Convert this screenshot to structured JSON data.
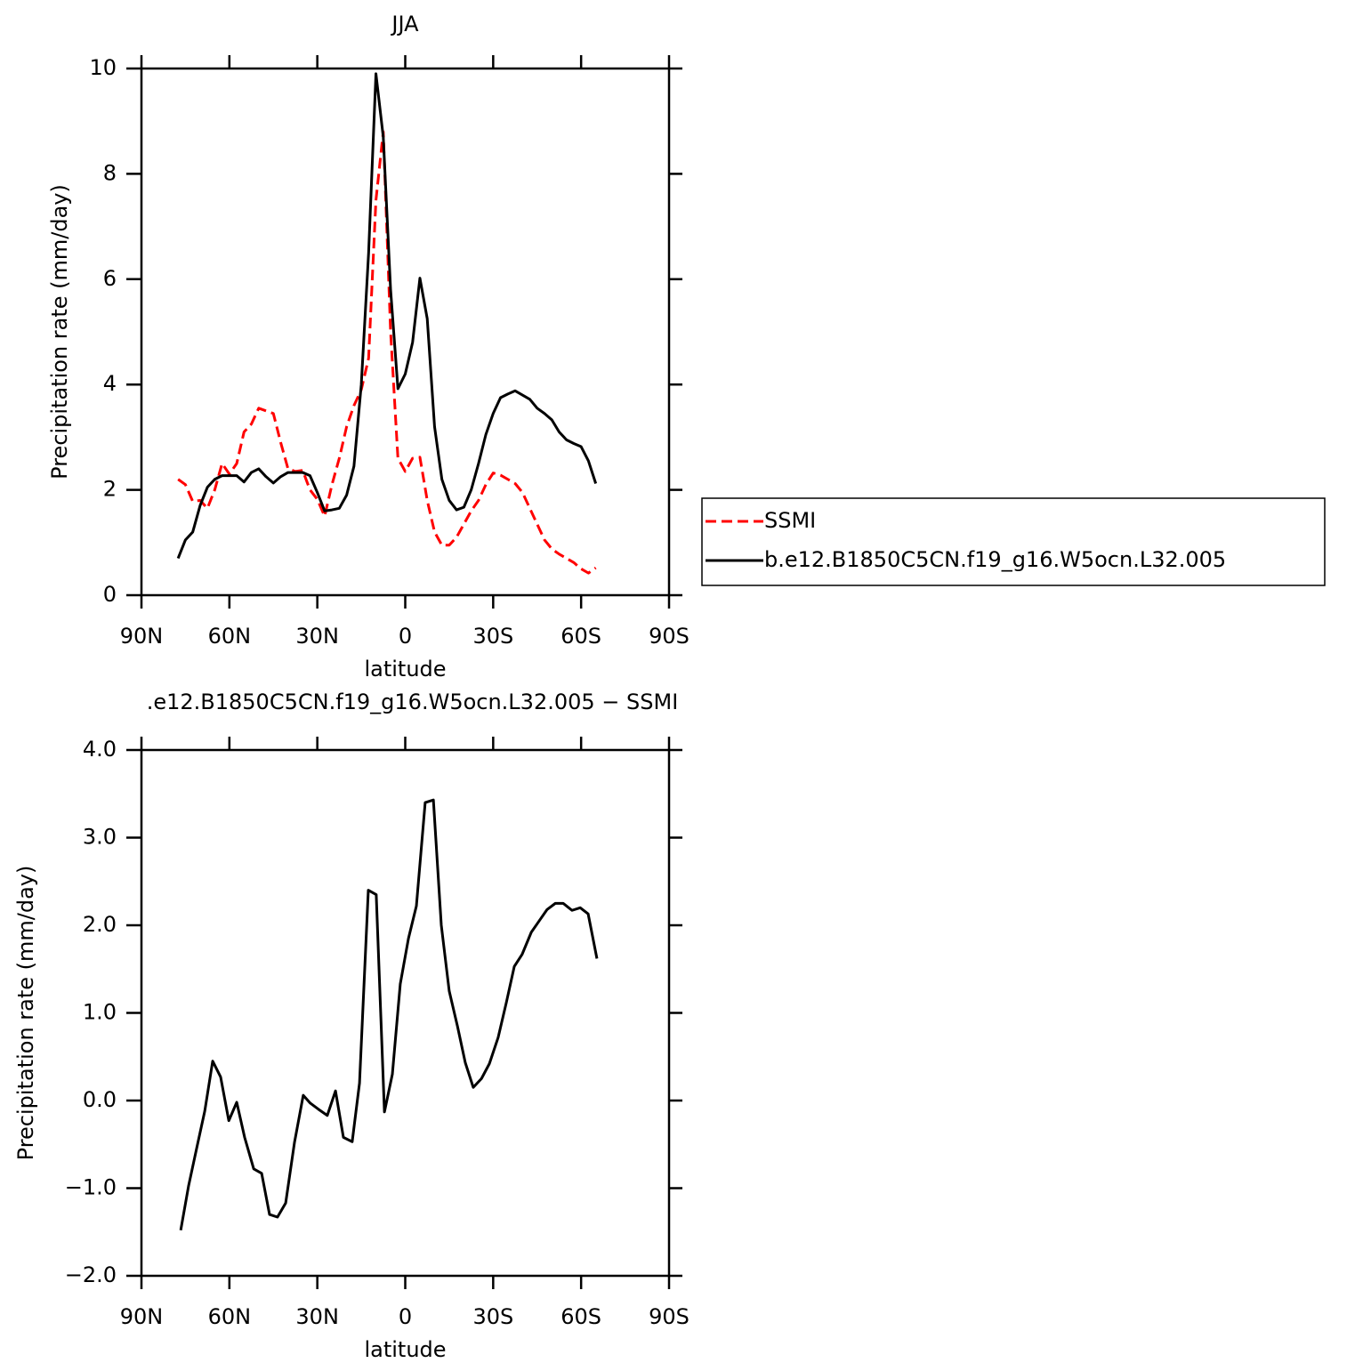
{
  "chart_data": [
    {
      "type": "line",
      "title": "JJA",
      "ylabel": "Precipitation rate (mm/day)",
      "xlabel": "latitude",
      "x": [
        77.5,
        75,
        72.5,
        70,
        67.5,
        65,
        62.5,
        60,
        57.5,
        55,
        52.5,
        50,
        47.5,
        45,
        42.5,
        40,
        37.5,
        35,
        32.5,
        30,
        27.5,
        25,
        22.5,
        20,
        17.5,
        15,
        12.5,
        10,
        7.5,
        5,
        2.5,
        0,
        -2.5,
        -5,
        -7.5,
        -10,
        -12.5,
        -15,
        -17.5,
        -20,
        -22.5,
        -25,
        -27.5,
        -30,
        -32.5,
        -35,
        -37.5,
        -40,
        -42.5,
        -45,
        -47.5,
        -50,
        -52.5,
        -55,
        -57.5,
        -60,
        -62.5,
        -65
      ],
      "series": [
        {
          "name": "SSMI",
          "color": "#ff0000",
          "line_style": "dashed",
          "values": [
            2.2,
            2.1,
            1.78,
            1.8,
            1.65,
            2.0,
            2.5,
            2.3,
            2.5,
            3.1,
            3.25,
            3.55,
            3.5,
            3.45,
            2.9,
            2.4,
            2.35,
            2.37,
            2.0,
            1.82,
            1.5,
            2.1,
            2.6,
            3.2,
            3.6,
            3.9,
            4.5,
            7.5,
            8.8,
            5.0,
            2.6,
            2.35,
            2.6,
            2.62,
            1.8,
            1.2,
            0.95,
            0.95,
            1.1,
            1.35,
            1.6,
            1.8,
            2.1,
            2.32,
            2.28,
            2.2,
            2.12,
            1.95,
            1.65,
            1.35,
            1.05,
            0.88,
            0.78,
            0.7,
            0.62,
            0.5,
            0.42,
            0.52
          ]
        },
        {
          "name": "b.e12.B1850C5CN.f19_g16.W5ocn.L32.005",
          "color": "#000000",
          "line_style": "solid",
          "values": [
            0.7,
            1.05,
            1.2,
            1.7,
            2.05,
            2.2,
            2.27,
            2.27,
            2.27,
            2.15,
            2.33,
            2.4,
            2.25,
            2.13,
            2.25,
            2.33,
            2.33,
            2.33,
            2.27,
            1.95,
            1.6,
            1.62,
            1.65,
            1.9,
            2.45,
            4.0,
            6.5,
            9.9,
            8.7,
            5.8,
            3.92,
            4.2,
            4.8,
            6.02,
            5.25,
            3.2,
            2.2,
            1.8,
            1.62,
            1.67,
            2.0,
            2.5,
            3.05,
            3.45,
            3.75,
            3.82,
            3.88,
            3.8,
            3.72,
            3.55,
            3.45,
            3.33,
            3.1,
            2.95,
            2.88,
            2.82,
            2.55,
            2.12
          ]
        }
      ],
      "xlim": [
        90,
        -90
      ],
      "xticks": [
        {
          "value": 90,
          "label": "90N"
        },
        {
          "value": 60,
          "label": "60N"
        },
        {
          "value": 30,
          "label": "30N"
        },
        0,
        {
          "value": -30,
          "label": "30S"
        },
        {
          "value": -60,
          "label": "60S"
        },
        {
          "value": -90,
          "label": "90S"
        }
      ],
      "ylim": [
        0,
        10
      ],
      "yticks": [
        0,
        2,
        4,
        6,
        8,
        10
      ],
      "legend": "right"
    },
    {
      "type": "line",
      "title": ".e12.B1850C5CN.f19_g16.W5ocn.L32.005 − SSMI",
      "ylabel": "Precipitation rate (mm/day)",
      "xlabel": "latitude",
      "x": [
        76.6,
        73.9,
        71.2,
        68.4,
        65.7,
        63.0,
        60.2,
        57.5,
        54.8,
        51.7,
        49.0,
        46.3,
        43.6,
        40.8,
        37.8,
        34.8,
        32.4,
        29.6,
        26.6,
        23.8,
        21.1,
        18.1,
        15.6,
        12.6,
        9.9,
        7.1,
        4.4,
        1.7,
        -1.1,
        -3.8,
        -6.8,
        -9.6,
        -12.3,
        -15.0,
        -17.8,
        -20.5,
        -23.2,
        -26.0,
        -28.7,
        -31.7,
        -34.5,
        -37.2,
        -39.9,
        -43.0,
        -45.7,
        -48.4,
        -51.2,
        -53.9,
        -56.9,
        -59.7,
        -62.4,
        -65.4
      ],
      "series": [
        {
          "color": "#000000",
          "line_style": "solid",
          "values": [
            -1.48,
            -0.97,
            -0.55,
            -0.12,
            0.45,
            0.27,
            -0.23,
            -0.02,
            -0.42,
            -0.78,
            -0.83,
            -1.3,
            -1.33,
            -1.17,
            -0.48,
            0.06,
            -0.03,
            -0.1,
            -0.17,
            0.11,
            -0.42,
            -0.47,
            0.2,
            2.4,
            2.35,
            -0.13,
            0.3,
            1.33,
            1.85,
            2.22,
            3.4,
            3.43,
            2.0,
            1.25,
            0.85,
            0.43,
            0.15,
            0.25,
            0.42,
            0.72,
            1.12,
            1.53,
            1.67,
            1.92,
            2.05,
            2.18,
            2.25,
            2.25,
            2.17,
            2.2,
            2.13,
            1.62
          ]
        }
      ],
      "xlim": [
        90,
        -90
      ],
      "xticks": [
        {
          "value": 90,
          "label": "90N"
        },
        {
          "value": 60,
          "label": "60N"
        },
        {
          "value": 30,
          "label": "30N"
        },
        0,
        {
          "value": -30,
          "label": "30S"
        },
        {
          "value": -60,
          "label": "60S"
        },
        {
          "value": -90,
          "label": "90S"
        }
      ],
      "ylim": [
        -2,
        4
      ],
      "yticks": [
        {
          "value": -2,
          "label": "−2.0"
        },
        {
          "value": -1,
          "label": "−1.0"
        },
        {
          "value": 0,
          "label": "0.0"
        },
        {
          "value": 1,
          "label": "1.0"
        },
        {
          "value": 2,
          "label": "2.0"
        },
        {
          "value": 3,
          "label": "3.0"
        },
        {
          "value": 4,
          "label": "4.0"
        }
      ]
    }
  ]
}
